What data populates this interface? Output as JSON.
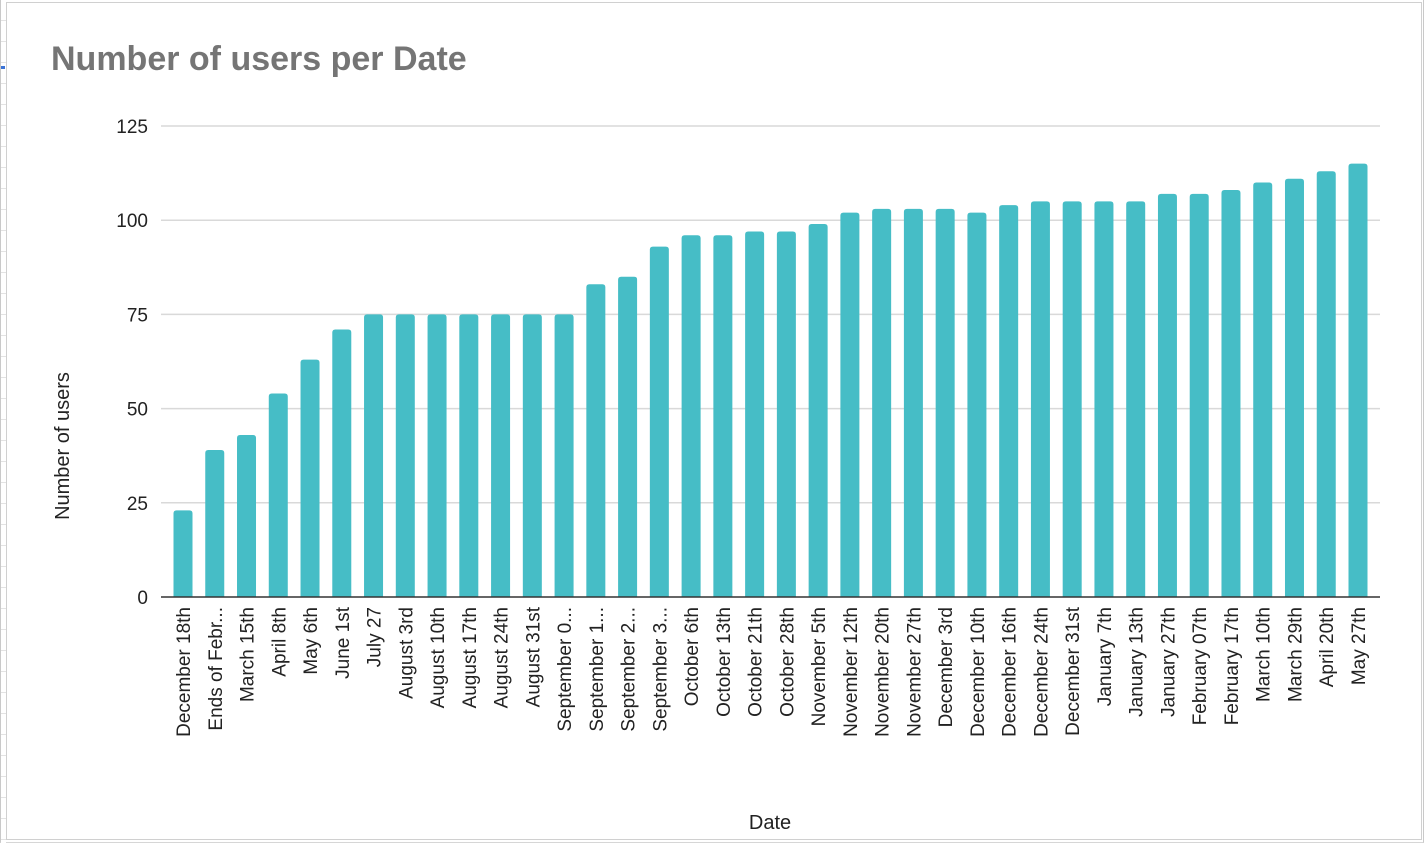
{
  "chart_data": {
    "type": "bar",
    "title": "Number of users per Date",
    "xlabel": "Date",
    "ylabel": "Number of users",
    "ylim": [
      0,
      125
    ],
    "yticks": [
      0,
      25,
      50,
      75,
      100,
      125
    ],
    "grid": true,
    "legend": "none",
    "bar_color": "#46bdc6",
    "categories": [
      "December 18th",
      "Ends of Febr...",
      "March 15th",
      "April 8th",
      "May 6th",
      "June 1st",
      "July 27",
      "August 3rd",
      "August 10th",
      "August 17th",
      "August 24th",
      "August 31st",
      "September 0...",
      "September 1...",
      "September 2...",
      "September 3...",
      "October 6th",
      "October 13th",
      "October 21th",
      "October 28th",
      "November 5th",
      "November 12th",
      "November 20th",
      "November 27th",
      "December 3rd",
      "December 10th",
      "December 16th",
      "December 24th",
      "December 31st",
      "January 7th",
      "January 13th",
      "January 27th",
      "February 07th",
      "February 17th",
      "March 10th",
      "March 29th",
      "April 20th",
      "May 27th"
    ],
    "values": [
      23,
      39,
      43,
      54,
      63,
      71,
      75,
      75,
      75,
      75,
      75,
      75,
      75,
      83,
      85,
      93,
      96,
      96,
      97,
      97,
      99,
      102,
      103,
      103,
      103,
      102,
      104,
      105,
      105,
      105,
      105,
      107,
      107,
      108,
      110,
      111,
      113,
      115
    ]
  }
}
